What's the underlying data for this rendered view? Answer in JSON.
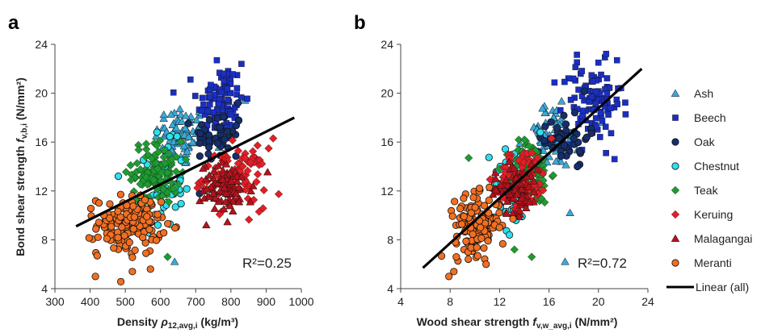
{
  "colors": {
    "Ash": "#3aa8d8",
    "Beech": "#1a2fc2",
    "Oak": "#152f6e",
    "Chestnut": "#2ee0ee",
    "Teak": "#1f9a32",
    "Keruing": "#e41e26",
    "Malagangai": "#b5121b",
    "Meranti": "#f36f21",
    "Linear": "#000000"
  },
  "legend": {
    "position": "right",
    "items": [
      {
        "label": "Ash",
        "marker": "triangle"
      },
      {
        "label": "Beech",
        "marker": "square"
      },
      {
        "label": "Oak",
        "marker": "circle"
      },
      {
        "label": "Chestnut",
        "marker": "circle"
      },
      {
        "label": "Teak",
        "marker": "diamond"
      },
      {
        "label": "Keruing",
        "marker": "diamond"
      },
      {
        "label": "Malagangai",
        "marker": "triangle"
      },
      {
        "label": "Meranti",
        "marker": "circle"
      },
      {
        "label": "Linear (all)",
        "marker": "line"
      }
    ]
  },
  "chart_data": [
    {
      "panel": "a",
      "type": "scatter",
      "xlabel_main": "Density ",
      "xlabel_symbol": "ρ",
      "xlabel_sub": "12,avg,i",
      "xlabel_unit": " (kg/m³)",
      "ylabel_main": "Bond shear strength ",
      "ylabel_symbol": "f",
      "ylabel_sub": "v,b,i",
      "ylabel_unit": " (N/mm²)",
      "xlim": [
        300,
        1000
      ],
      "ylim": [
        4,
        24
      ],
      "xticks": [
        300,
        400,
        500,
        600,
        700,
        800,
        900,
        1000
      ],
      "yticks": [
        4,
        8,
        12,
        16,
        20,
        24
      ],
      "r2_label": "R²=0.25",
      "trendline": {
        "x": [
          360,
          980
        ],
        "y": [
          9.1,
          18.0
        ]
      },
      "series": [
        {
          "name": "Ash",
          "cx": 660,
          "cy": 16.5,
          "sx": 38,
          "sy": 1.3,
          "n": 70,
          "outliers": [
            [
              640,
              6.2
            ],
            [
              840,
              19.4
            ]
          ]
        },
        {
          "name": "Beech",
          "cx": 770,
          "cy": 19.3,
          "sx": 33,
          "sy": 1.6,
          "n": 95,
          "outliers": [
            [
              830,
              22.4
            ],
            [
              760,
              22.7
            ]
          ]
        },
        {
          "name": "Oak",
          "cx": 765,
          "cy": 16.4,
          "sx": 35,
          "sy": 1.1,
          "n": 45,
          "outliers": [
            [
              820,
              19.2
            ]
          ]
        },
        {
          "name": "Chestnut",
          "cx": 610,
          "cy": 12.5,
          "sx": 27,
          "sy": 1.7,
          "n": 50,
          "outliers": [
            [
              480,
              13.2
            ],
            [
              590,
              16.8
            ]
          ]
        },
        {
          "name": "Teak",
          "cx": 590,
          "cy": 13.5,
          "sx": 35,
          "sy": 1.3,
          "n": 110,
          "outliers": [
            [
              620,
              6.6
            ]
          ]
        },
        {
          "name": "Keruing",
          "cx": 810,
          "cy": 13.1,
          "sx": 45,
          "sy": 1.2,
          "n": 90,
          "outliers": [
            [
              880,
              10.3
            ],
            [
              920,
              16.3
            ]
          ]
        },
        {
          "name": "Malagangai",
          "cx": 790,
          "cy": 12.2,
          "sx": 38,
          "sy": 1.0,
          "n": 85,
          "outliers": [
            [
              730,
              9.2
            ]
          ]
        },
        {
          "name": "Meranti",
          "cx": 510,
          "cy": 9.2,
          "sx": 45,
          "sy": 1.2,
          "n": 150,
          "outliers": [
            [
              415,
              5.0
            ],
            [
              520,
              5.4
            ],
            [
              420,
              6.7
            ]
          ]
        }
      ]
    },
    {
      "panel": "b",
      "type": "scatter",
      "xlabel_main": "Wood shear strength ",
      "xlabel_symbol": "f",
      "xlabel_sub": "v,w_avg,i",
      "xlabel_unit": " (N/mm²)",
      "ylabel_main": "",
      "ylabel_symbol": "",
      "ylabel_sub": "",
      "ylabel_unit": "",
      "xlim": [
        4,
        24
      ],
      "ylim": [
        4,
        24
      ],
      "xticks": [
        4,
        8,
        12,
        16,
        20,
        24
      ],
      "yticks": [
        4,
        8,
        12,
        16,
        20,
        24
      ],
      "r2_label": "R²=0.72",
      "trendline": {
        "x": [
          5.8,
          23.5
        ],
        "y": [
          5.7,
          22.0
        ]
      },
      "series": [
        {
          "name": "Ash",
          "cx": 16.2,
          "cy": 16.5,
          "sx": 1.1,
          "sy": 1.3,
          "n": 70,
          "outliers": [
            [
              17.3,
              6.2
            ],
            [
              17.7,
              10.2
            ],
            [
              20.3,
              17.6
            ]
          ]
        },
        {
          "name": "Beech",
          "cx": 19.5,
          "cy": 19.3,
          "sx": 1.2,
          "sy": 1.6,
          "n": 95,
          "outliers": [
            [
              20.0,
              22.5
            ],
            [
              21.5,
              22.7
            ],
            [
              21.3,
              14.6
            ]
          ]
        },
        {
          "name": "Oak",
          "cx": 17.2,
          "cy": 16.4,
          "sx": 1.0,
          "sy": 1.1,
          "n": 45,
          "outliers": [
            [
              18.3,
              14.0
            ]
          ]
        },
        {
          "name": "Chestnut",
          "cx": 13.2,
          "cy": 12.5,
          "sx": 0.9,
          "sy": 1.7,
          "n": 50,
          "outliers": [
            [
              12.8,
              8.4
            ],
            [
              15.3,
              16.8
            ]
          ]
        },
        {
          "name": "Teak",
          "cx": 14.5,
          "cy": 13.5,
          "sx": 0.8,
          "sy": 1.3,
          "n": 110,
          "outliers": [
            [
              14.6,
              6.6
            ],
            [
              9.5,
              14.7
            ],
            [
              13.2,
              7.2
            ]
          ]
        },
        {
          "name": "Keruing",
          "cx": 13.9,
          "cy": 13.1,
          "sx": 1.0,
          "sy": 1.2,
          "n": 90,
          "outliers": [
            [
              16.2,
              16.3
            ]
          ]
        },
        {
          "name": "Malagangai",
          "cx": 13.3,
          "cy": 12.2,
          "sx": 0.9,
          "sy": 1.0,
          "n": 85,
          "outliers": [
            [
              11.5,
              9.6
            ]
          ]
        },
        {
          "name": "Meranti",
          "cx": 10.2,
          "cy": 9.2,
          "sx": 0.9,
          "sy": 1.2,
          "n": 150,
          "outliers": [
            [
              7.9,
              5.0
            ],
            [
              8.3,
              5.4
            ],
            [
              8.5,
              6.6
            ]
          ]
        }
      ]
    }
  ]
}
